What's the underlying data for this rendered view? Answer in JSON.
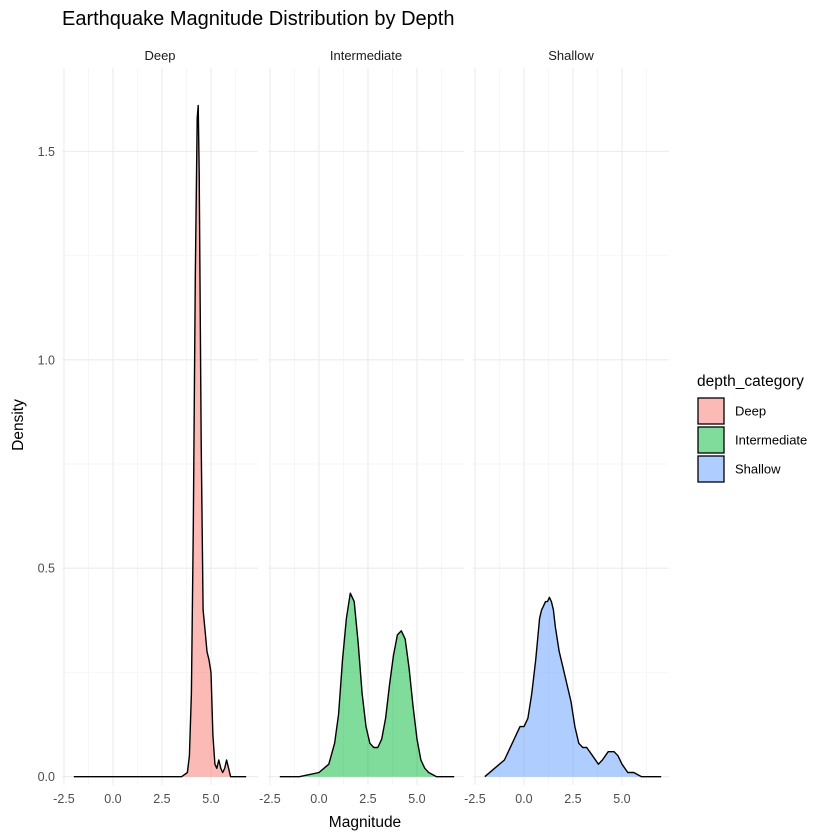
{
  "chart_data": {
    "type": "area",
    "subtype": "density-faceted",
    "title": "Earthquake Magnitude Distribution by Depth",
    "xlabel": "Magnitude",
    "ylabel": "Density",
    "xlim": [
      -2.6,
      7.4
    ],
    "ylim": [
      -0.02,
      1.7
    ],
    "x_ticks": [
      -2.5,
      0.0,
      2.5,
      5.0
    ],
    "x_tick_labels": [
      "-2.5",
      "0.0",
      "2.5",
      "5.0"
    ],
    "y_ticks": [
      0.0,
      0.5,
      1.0,
      1.5
    ],
    "y_tick_labels": [
      "0.0",
      "0.5",
      "1.0",
      "1.5"
    ],
    "grid": true,
    "legend": {
      "title": "depth_category",
      "position": "right",
      "items": [
        "Deep",
        "Intermediate",
        "Shallow"
      ]
    },
    "series": [
      {
        "name": "Deep",
        "facet": "Deep",
        "color": "#F8766D",
        "x": [
          -2.0,
          3.5,
          3.8,
          3.9,
          4.0,
          4.1,
          4.2,
          4.3,
          4.35,
          4.4,
          4.5,
          4.6,
          4.7,
          4.8,
          4.9,
          5.0,
          5.1,
          5.2,
          5.3,
          5.4,
          5.5,
          5.6,
          5.7,
          5.8,
          5.9,
          6.0,
          6.3,
          6.8
        ],
        "y": [
          0.0,
          0.0,
          0.01,
          0.05,
          0.2,
          0.6,
          1.2,
          1.58,
          1.61,
          1.45,
          0.8,
          0.4,
          0.35,
          0.3,
          0.28,
          0.25,
          0.1,
          0.03,
          0.02,
          0.04,
          0.02,
          0.01,
          0.02,
          0.04,
          0.02,
          0.0,
          0.0,
          0.0
        ]
      },
      {
        "name": "Intermediate",
        "facet": "Intermediate",
        "color": "#00BA38",
        "x": [
          -2.0,
          -1.0,
          0.0,
          0.5,
          0.8,
          1.0,
          1.2,
          1.4,
          1.6,
          1.8,
          2.0,
          2.2,
          2.4,
          2.6,
          2.8,
          3.0,
          3.2,
          3.4,
          3.6,
          3.8,
          4.0,
          4.2,
          4.4,
          4.6,
          4.8,
          5.0,
          5.2,
          5.4,
          5.6,
          6.0,
          6.5,
          6.9
        ],
        "y": [
          0.0,
          0.0,
          0.01,
          0.03,
          0.08,
          0.15,
          0.28,
          0.38,
          0.44,
          0.42,
          0.32,
          0.2,
          0.12,
          0.08,
          0.07,
          0.07,
          0.09,
          0.14,
          0.22,
          0.29,
          0.34,
          0.35,
          0.33,
          0.26,
          0.17,
          0.09,
          0.04,
          0.02,
          0.01,
          0.0,
          0.0,
          0.0
        ]
      },
      {
        "name": "Shallow",
        "facet": "Shallow",
        "color": "#619CFF",
        "x": [
          -2.0,
          -1.5,
          -1.0,
          -0.5,
          -0.2,
          0.0,
          0.2,
          0.4,
          0.6,
          0.8,
          0.9,
          1.0,
          1.1,
          1.2,
          1.3,
          1.4,
          1.5,
          1.6,
          1.8,
          2.0,
          2.2,
          2.4,
          2.6,
          2.8,
          3.0,
          3.2,
          3.5,
          3.8,
          4.0,
          4.3,
          4.6,
          4.8,
          5.0,
          5.3,
          5.6,
          6.0,
          6.5,
          7.0
        ],
        "y": [
          0.0,
          0.02,
          0.04,
          0.09,
          0.12,
          0.12,
          0.14,
          0.2,
          0.28,
          0.38,
          0.4,
          0.41,
          0.42,
          0.42,
          0.43,
          0.42,
          0.4,
          0.36,
          0.3,
          0.26,
          0.22,
          0.18,
          0.12,
          0.08,
          0.07,
          0.07,
          0.05,
          0.03,
          0.04,
          0.06,
          0.06,
          0.05,
          0.03,
          0.01,
          0.01,
          0.0,
          0.0,
          0.0
        ]
      }
    ]
  },
  "facets": [
    "Deep",
    "Intermediate",
    "Shallow"
  ]
}
